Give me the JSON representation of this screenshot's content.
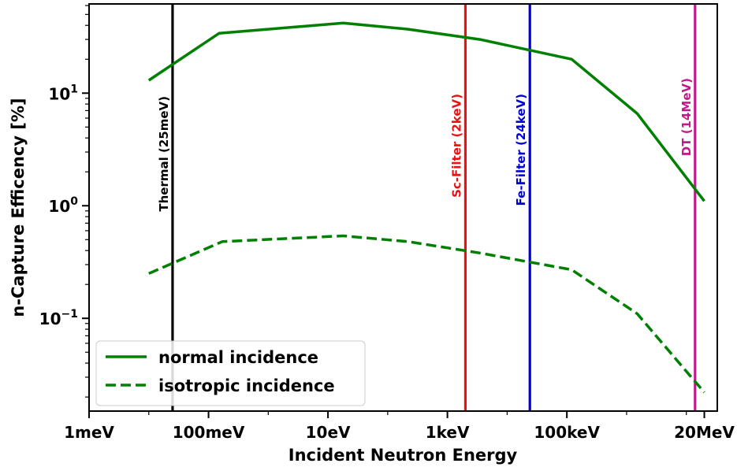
{
  "chart_data": {
    "type": "line",
    "xlabel": "Incident Neutron Energy",
    "ylabel": "n-Capture Efficency [%]",
    "x_scale": "log",
    "y_scale": "log",
    "x_unit": "eV",
    "xlim": [
      0.001,
      33000000
    ],
    "ylim": [
      0.015,
      62
    ],
    "x_ticks": [
      {
        "value": 0.001,
        "label": "1meV"
      },
      {
        "value": 0.1,
        "label": "100meV"
      },
      {
        "value": 10,
        "label": "10eV"
      },
      {
        "value": 1000,
        "label": "1keV"
      },
      {
        "value": 100000,
        "label": "100keV"
      },
      {
        "value": 20000000,
        "label": "20MeV"
      }
    ],
    "y_ticks": [
      {
        "value": 0.1,
        "base": "10",
        "exp": "−1"
      },
      {
        "value": 1,
        "base": "10",
        "exp": "0"
      },
      {
        "value": 10,
        "base": "10",
        "exp": "1"
      }
    ],
    "series": [
      {
        "name": "normal incidence",
        "color": "#008000",
        "style": "solid",
        "x": [
          0.01,
          0.15,
          18,
          220,
          3500,
          120000,
          1500000,
          20000000
        ],
        "y": [
          13,
          34,
          42,
          37,
          30,
          20,
          6.6,
          1.1
        ]
      },
      {
        "name": "isotropic incidence",
        "color": "#008000",
        "style": "dashed",
        "x": [
          0.01,
          0.17,
          18,
          220,
          3500,
          120000,
          1500000,
          20000000
        ],
        "y": [
          0.25,
          0.48,
          0.54,
          0.48,
          0.38,
          0.27,
          0.11,
          0.022
        ]
      }
    ],
    "vertical_lines": [
      {
        "x": 0.025,
        "label": "Thermal (25meV)",
        "color": "#000000"
      },
      {
        "x": 2000,
        "label": "Sc-Filter (2keV)",
        "color": "#ee1111"
      },
      {
        "x": 24000,
        "label": "Fe-Filter (24keV)",
        "color": "#0000dd"
      },
      {
        "x": 14000000,
        "label": "DT (14MeV)",
        "color": "#c01b8c"
      }
    ],
    "grid": false,
    "legend_placement": "lower-left"
  }
}
